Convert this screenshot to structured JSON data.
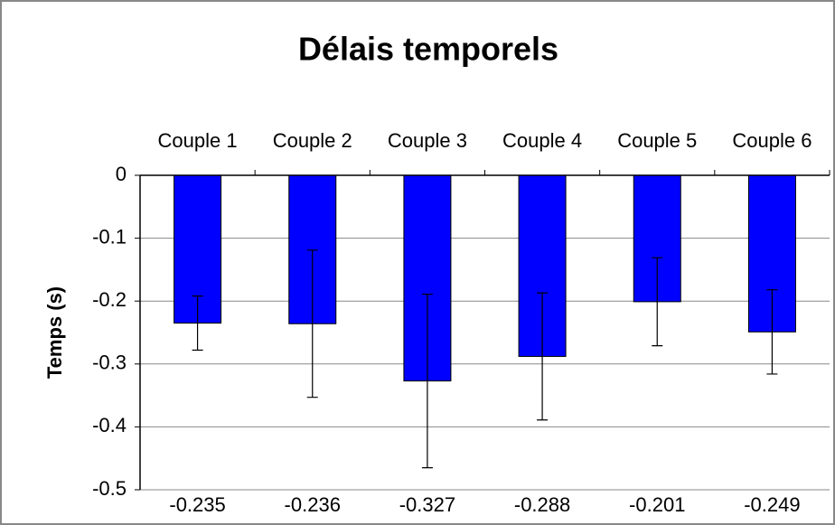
{
  "chart_data": {
    "type": "bar",
    "title": "Délais temporels",
    "y_label": "Temps (s)",
    "categories": [
      "Couple 1",
      "Couple 2",
      "Couple 3",
      "Couple 4",
      "Couple 5",
      "Couple 6"
    ],
    "values": [
      -0.235,
      -0.236,
      -0.327,
      -0.288,
      -0.201,
      -0.249
    ],
    "errors": [
      0.043,
      0.117,
      0.138,
      0.101,
      0.07,
      0.067
    ],
    "color": "#0000ff",
    "ylim": [
      -0.5,
      0
    ],
    "yticks": [
      0,
      -0.1,
      -0.2,
      -0.3,
      -0.4,
      -0.5
    ],
    "grid": true
  }
}
